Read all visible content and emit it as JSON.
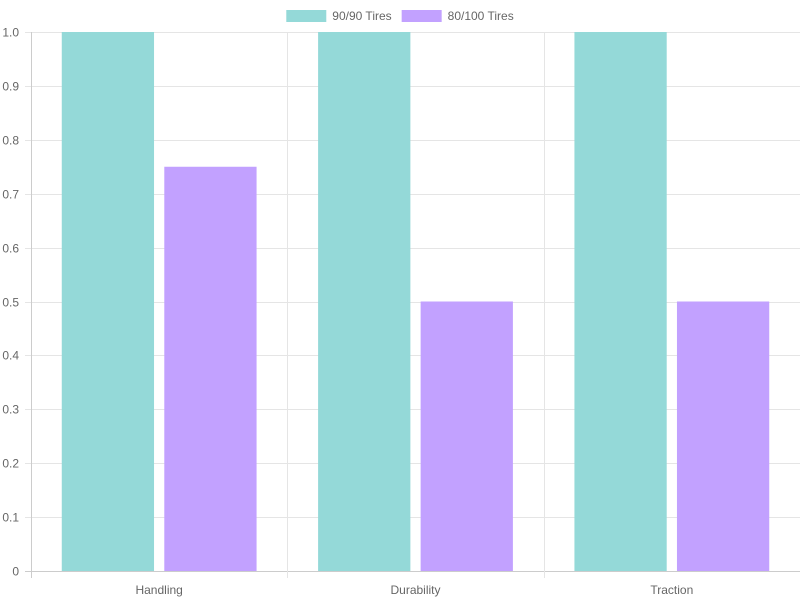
{
  "chart_data": {
    "type": "bar",
    "categories": [
      "Handling",
      "Durability",
      "Traction"
    ],
    "series": [
      {
        "name": "90/90 Tires",
        "values": [
          1.0,
          1.0,
          1.0
        ],
        "color": "#94d9d8"
      },
      {
        "name": "80/100 Tires",
        "values": [
          0.75,
          0.5,
          0.5
        ],
        "color": "#c2a1ff"
      }
    ],
    "title": "",
    "xlabel": "",
    "ylabel": "",
    "ylim": [
      0,
      1.0
    ],
    "yticks": [
      "0",
      "0.1",
      "0.2",
      "0.3",
      "0.4",
      "0.5",
      "0.6",
      "0.7",
      "0.8",
      "0.9",
      "1.0"
    ],
    "grid": true,
    "legend_position": "top-center",
    "colors": {
      "grid": "#e5e5e5",
      "axis": "#cccccc",
      "text": "#666666"
    }
  }
}
